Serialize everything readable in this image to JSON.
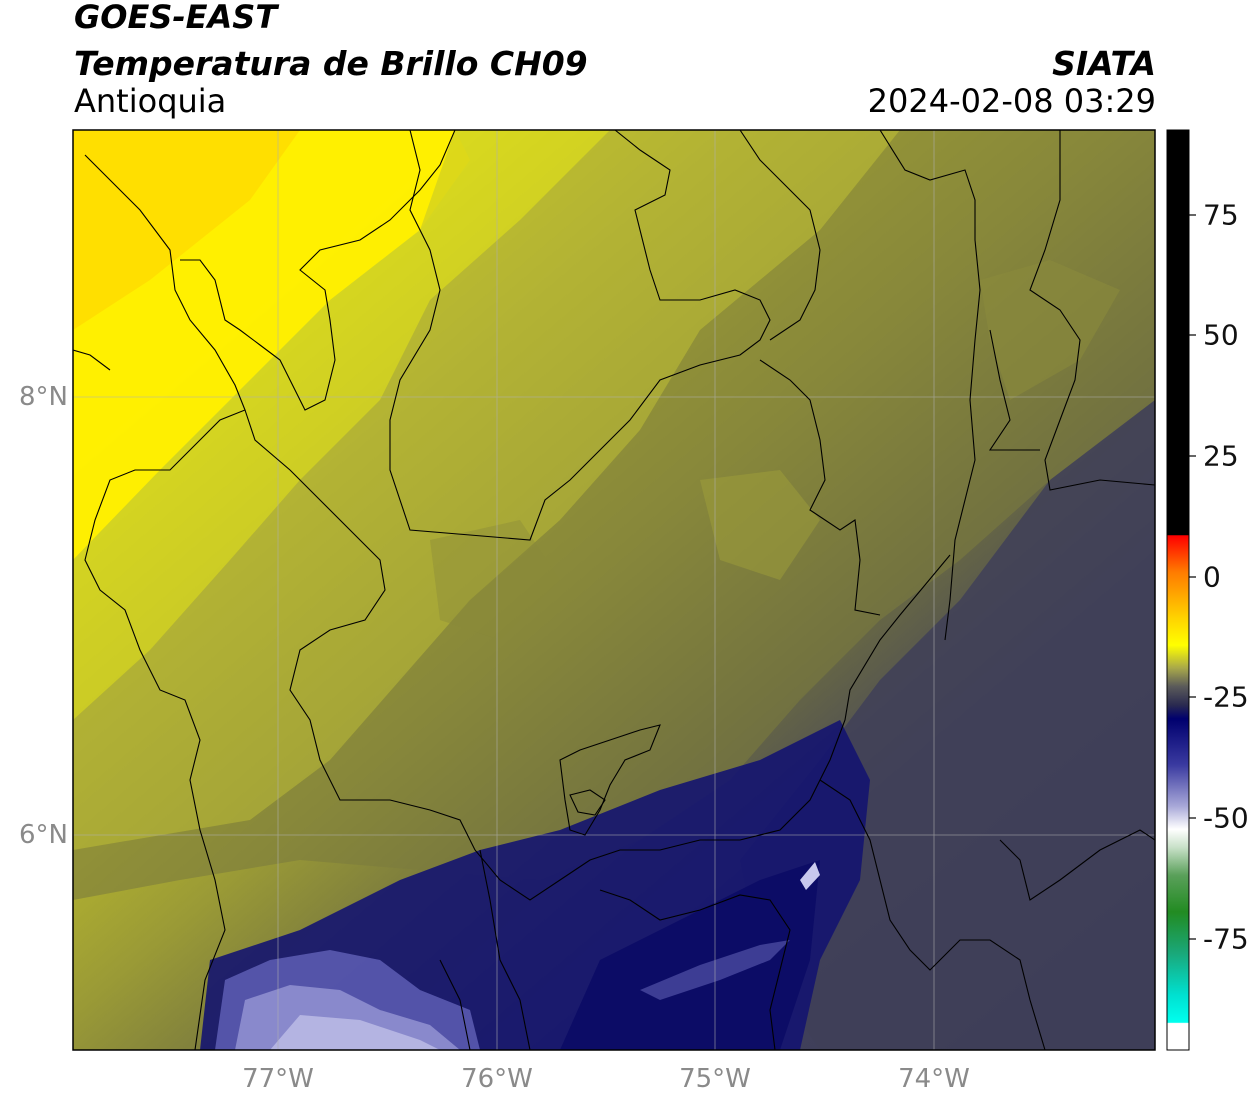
{
  "header": {
    "satellite": "GOES-EAST",
    "product": "Temperatura de Brillo CH09",
    "organization": "SIATA",
    "region": "Antioquia",
    "datetime": "2024-02-08 03:29"
  },
  "map": {
    "latitude_labels": [
      "8°N",
      "6°N"
    ],
    "longitude_labels": [
      "77°W",
      "76°W",
      "75°W",
      "74°W"
    ],
    "palette": {
      "yellow": "#ffff00",
      "olive_light": "#c8c826",
      "olive": "#8c8c34",
      "olive_dark": "#6a6a40",
      "slate": "#3e3e55",
      "navy": "#131377",
      "lavender": "#9b9bd4"
    }
  },
  "colorbar": {
    "tick_labels": [
      "75",
      "50",
      "25",
      "0",
      "-25",
      "-50",
      "-75"
    ],
    "colors": {
      "black": "#000000",
      "red": "#ff0000",
      "orange": "#ff8c00",
      "yellow": "#ffff00",
      "navy": "#00006e",
      "white": "#ffffff",
      "green": "#228b22",
      "cyan": "#00e5e5"
    }
  }
}
